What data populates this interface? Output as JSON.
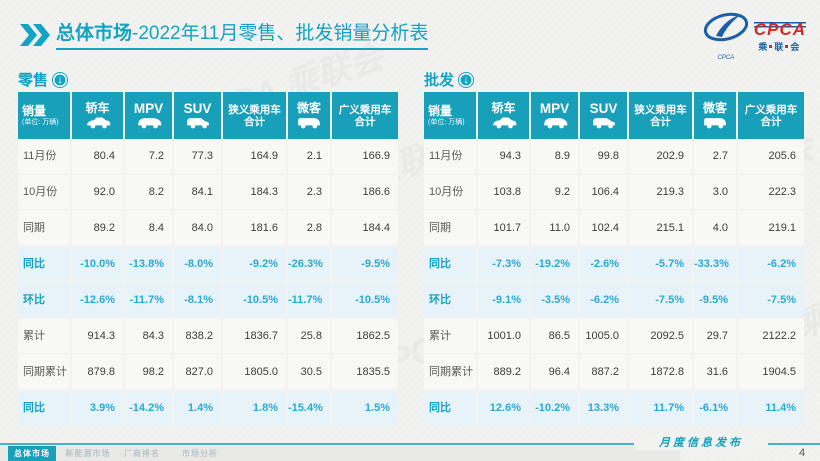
{
  "header": {
    "title_bold": "总体市场",
    "title_rest": "-2022年11月零售、批发销量分析表",
    "logo": {
      "cpca": "CPCA",
      "oval_text": "CPCA",
      "sub_chars": [
        "乘",
        "联",
        "会"
      ]
    }
  },
  "watermark_text": "CPCA 乘联会",
  "colors": {
    "teal": "#189fba",
    "percent_blue": "#29a9d6",
    "percent_row_bg": "#e7f3f8",
    "logo_red": "#cf2a27",
    "logo_blue": "#1b5fa8"
  },
  "table_columns": [
    {
      "label": "销量",
      "note": "(单位: 万辆)",
      "icon": null
    },
    {
      "label": "轿车",
      "icon": "sedan-car-icon"
    },
    {
      "label": "MPV",
      "icon": "mpv-car-icon"
    },
    {
      "label": "SUV",
      "icon": "suv-car-icon"
    },
    {
      "label": "狭义乘用车合计",
      "icon": null
    },
    {
      "label": "微客",
      "icon": "microvan-icon"
    },
    {
      "label": "广义乘用车合计",
      "icon": null
    }
  ],
  "retail": {
    "section_label": "零售",
    "rows": [
      {
        "label": "11月份",
        "kind": "number",
        "values": [
          "80.4",
          "7.2",
          "77.3",
          "164.9",
          "2.1",
          "166.9"
        ]
      },
      {
        "label": "10月份",
        "kind": "number",
        "values": [
          "92.0",
          "8.2",
          "84.1",
          "184.3",
          "2.3",
          "186.6"
        ]
      },
      {
        "label": "同期",
        "kind": "number",
        "values": [
          "89.2",
          "8.4",
          "84.0",
          "181.6",
          "2.8",
          "184.4"
        ]
      },
      {
        "label": "同比",
        "kind": "percent",
        "values": [
          "-10.0%",
          "-13.8%",
          "-8.0%",
          "-9.2%",
          "-26.3%",
          "-9.5%"
        ]
      },
      {
        "label": "环比",
        "kind": "percent",
        "values": [
          "-12.6%",
          "-11.7%",
          "-8.1%",
          "-10.5%",
          "-11.7%",
          "-10.5%"
        ]
      },
      {
        "label": "累计",
        "kind": "number",
        "values": [
          "914.3",
          "84.3",
          "838.2",
          "1836.7",
          "25.8",
          "1862.5"
        ]
      },
      {
        "label": "同期累计",
        "kind": "number",
        "values": [
          "879.8",
          "98.2",
          "827.0",
          "1805.0",
          "30.5",
          "1835.5"
        ]
      },
      {
        "label": "同比",
        "kind": "percent",
        "values": [
          "3.9%",
          "-14.2%",
          "1.4%",
          "1.8%",
          "-15.4%",
          "1.5%"
        ]
      }
    ]
  },
  "wholesale": {
    "section_label": "批发",
    "rows": [
      {
        "label": "11月份",
        "kind": "number",
        "values": [
          "94.3",
          "8.9",
          "99.8",
          "202.9",
          "2.7",
          "205.6"
        ]
      },
      {
        "label": "10月份",
        "kind": "number",
        "values": [
          "103.8",
          "9.2",
          "106.4",
          "219.3",
          "3.0",
          "222.3"
        ]
      },
      {
        "label": "同期",
        "kind": "number",
        "values": [
          "101.7",
          "11.0",
          "102.4",
          "215.1",
          "4.0",
          "219.1"
        ]
      },
      {
        "label": "同比",
        "kind": "percent",
        "values": [
          "-7.3%",
          "-19.2%",
          "-2.6%",
          "-5.7%",
          "-33.3%",
          "-6.2%"
        ]
      },
      {
        "label": "环比",
        "kind": "percent",
        "values": [
          "-9.1%",
          "-3.5%",
          "-6.2%",
          "-7.5%",
          "-9.5%",
          "-7.5%"
        ]
      },
      {
        "label": "累计",
        "kind": "number",
        "values": [
          "1001.0",
          "86.5",
          "1005.0",
          "2092.5",
          "29.7",
          "2122.2"
        ]
      },
      {
        "label": "同期累计",
        "kind": "number",
        "values": [
          "889.2",
          "96.4",
          "887.2",
          "1872.8",
          "31.6",
          "1904.5"
        ]
      },
      {
        "label": "同比",
        "kind": "percent",
        "values": [
          "12.6%",
          "-10.2%",
          "13.3%",
          "11.7%",
          "-6.1%",
          "11.4%"
        ]
      }
    ]
  },
  "footer": {
    "tabs": [
      {
        "label": "总体市场",
        "active": true
      },
      {
        "label": "新能源市场",
        "active": false
      },
      {
        "label": "厂商排名",
        "active": false
      },
      {
        "label": "市场分析",
        "active": false
      }
    ],
    "publish_label": "月度信息发布",
    "page_number": "4"
  }
}
